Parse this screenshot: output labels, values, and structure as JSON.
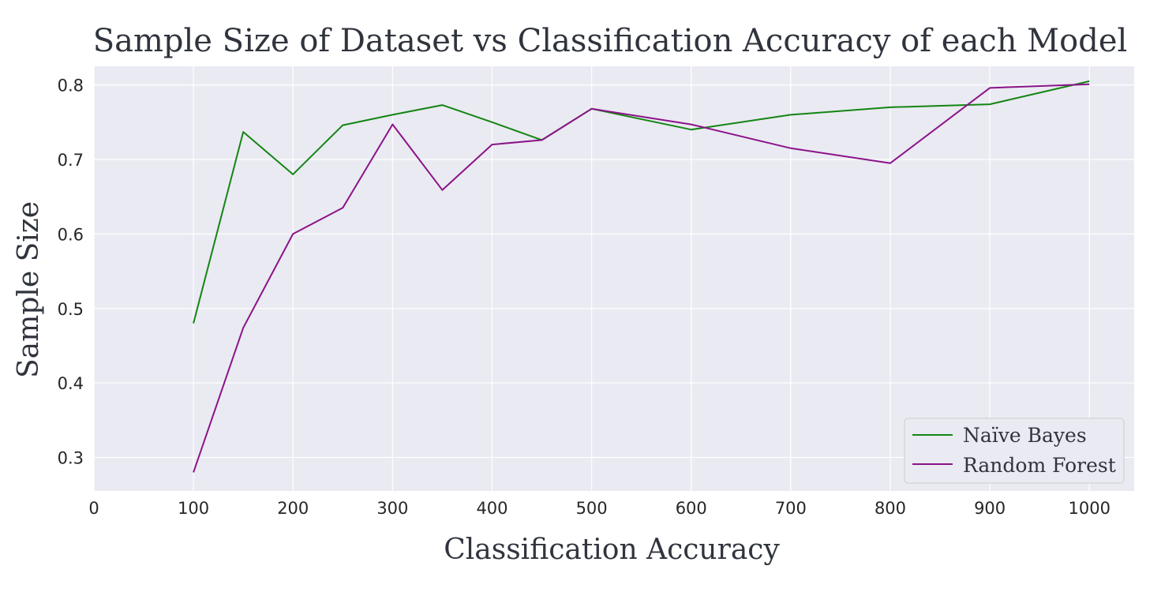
{
  "chart_data": {
    "type": "line",
    "title": "Sample Size of Dataset vs Classification Accuracy of each Model",
    "xlabel": "Classification Accuracy",
    "ylabel": "Sample Size",
    "x": [
      100,
      150,
      200,
      250,
      300,
      350,
      400,
      450,
      500,
      600,
      700,
      800,
      900,
      1000
    ],
    "xlim": [
      0,
      1045
    ],
    "ylim": [
      0.255,
      0.825
    ],
    "xticks": [
      0,
      100,
      200,
      300,
      400,
      500,
      600,
      700,
      800,
      900,
      1000
    ],
    "xtick_labels": [
      "0",
      "100",
      "200",
      "300",
      "400",
      "500",
      "600",
      "700",
      "800",
      "900",
      "1000"
    ],
    "yticks": [
      0.3,
      0.4,
      0.5,
      0.6,
      0.7,
      0.8
    ],
    "ytick_labels": [
      "0.3",
      "0.4",
      "0.5",
      "0.6",
      "0.7",
      "0.8"
    ],
    "grid": true,
    "legend_position": "lower-right",
    "series": [
      {
        "name": "Naïve Bayes",
        "color": "#138513",
        "values": [
          0.48,
          0.737,
          0.68,
          0.746,
          0.76,
          0.773,
          0.75,
          0.726,
          0.768,
          0.74,
          0.76,
          0.77,
          0.774,
          0.805
        ]
      },
      {
        "name": "Random Forest",
        "color": "#8b1389",
        "values": [
          0.28,
          0.474,
          0.6,
          0.635,
          0.747,
          0.659,
          0.72,
          0.726,
          0.768,
          0.747,
          0.715,
          0.695,
          0.796,
          0.801
        ]
      }
    ]
  }
}
